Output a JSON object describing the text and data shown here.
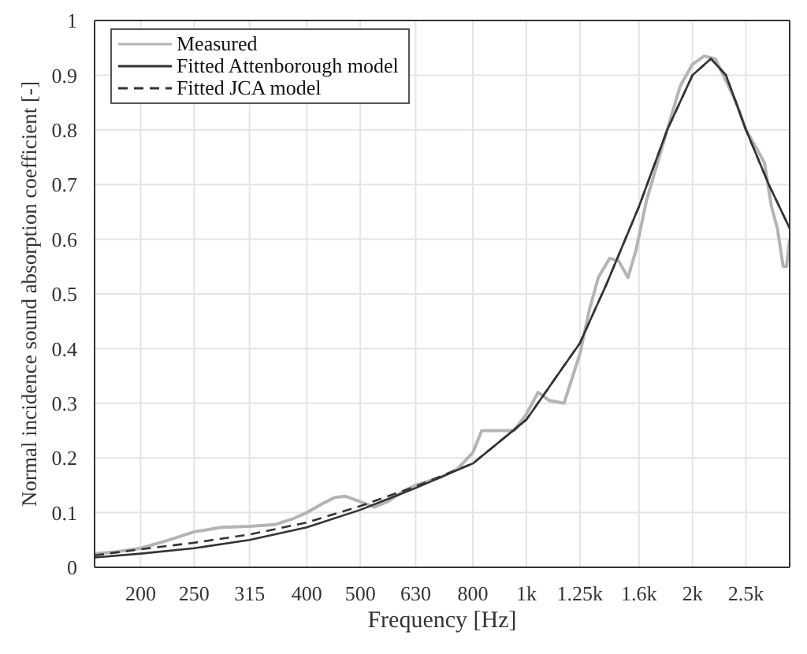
{
  "chart_data": {
    "type": "line",
    "xlabel": "Frequency [Hz]",
    "ylabel": "Normal incidence sound absorption coefficient [-]",
    "log": "x",
    "xlim": [
      165,
      3000
    ],
    "ylim": [
      0,
      1
    ],
    "xticks": [
      200,
      250,
      315,
      400,
      500,
      630,
      800,
      {
        "value": 1000,
        "label": "1k"
      },
      {
        "value": 1250,
        "label": "1.25k"
      },
      {
        "value": 1600,
        "label": "1.6k"
      },
      {
        "value": 2000,
        "label": "2k"
      },
      {
        "value": 2500,
        "label": "2.5k"
      }
    ],
    "yticks": [
      0,
      0.1,
      0.2,
      0.3,
      0.4,
      0.5,
      0.6,
      0.7,
      0.8,
      0.9,
      1
    ],
    "grid": true,
    "legend": "top left",
    "marker": "none",
    "series": [
      {
        "name": "Measured",
        "color": "#b4b4b4",
        "line_style": "solid",
        "x": [
          165,
          180,
          200,
          225,
          250,
          280,
          315,
          350,
          380,
          400,
          430,
          450,
          470,
          500,
          530,
          560,
          600,
          630,
          700,
          750,
          800,
          830,
          900,
          950,
          1000,
          1050,
          1100,
          1170,
          1250,
          1300,
          1350,
          1415,
          1470,
          1528,
          1580,
          1650,
          1800,
          1900,
          2000,
          2100,
          2200,
          2300,
          2400,
          2500,
          2600,
          2700,
          2780,
          2850,
          2920,
          2960,
          3000
        ],
        "values": [
          0.025,
          0.028,
          0.035,
          0.05,
          0.065,
          0.073,
          0.075,
          0.078,
          0.09,
          0.1,
          0.118,
          0.128,
          0.13,
          0.12,
          0.11,
          0.12,
          0.14,
          0.15,
          0.165,
          0.18,
          0.21,
          0.25,
          0.25,
          0.25,
          0.28,
          0.32,
          0.305,
          0.3,
          0.39,
          0.47,
          0.53,
          0.565,
          0.56,
          0.53,
          0.58,
          0.67,
          0.8,
          0.88,
          0.92,
          0.935,
          0.93,
          0.89,
          0.85,
          0.8,
          0.77,
          0.74,
          0.66,
          0.62,
          0.55,
          0.55,
          0.6
        ]
      },
      {
        "name": "Fitted Attenborough model",
        "color": "#333333",
        "line_style": "solid",
        "x": [
          165,
          200,
          250,
          315,
          400,
          500,
          630,
          800,
          1000,
          1250,
          1400,
          1600,
          1800,
          2000,
          2160,
          2300,
          2500,
          2750,
          3000
        ],
        "values": [
          0.018,
          0.025,
          0.035,
          0.05,
          0.073,
          0.105,
          0.145,
          0.19,
          0.27,
          0.41,
          0.52,
          0.66,
          0.8,
          0.9,
          0.93,
          0.9,
          0.8,
          0.7,
          0.62
        ]
      },
      {
        "name": "Fitted JCA model",
        "color": "#333333",
        "line_style": "dashed",
        "x": [
          165,
          200,
          250,
          315,
          400,
          500,
          630,
          800,
          1000,
          1250,
          1400,
          1600,
          1800,
          2000,
          2160,
          2300,
          2500,
          2750,
          3000
        ],
        "values": [
          0.022,
          0.033,
          0.045,
          0.06,
          0.082,
          0.112,
          0.148,
          0.19,
          0.27,
          0.41,
          0.52,
          0.66,
          0.8,
          0.9,
          0.93,
          0.9,
          0.8,
          0.7,
          0.62
        ]
      }
    ]
  }
}
